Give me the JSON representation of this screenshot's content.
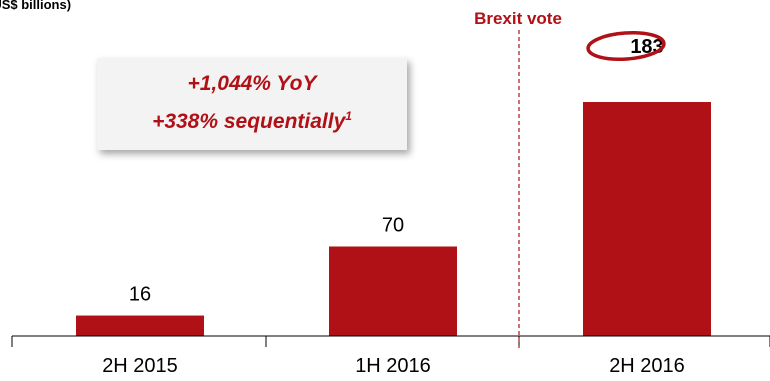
{
  "unit_label": "(US$ billions)",
  "callout": {
    "line1": "+1,044% YoY",
    "line2": "+338% sequentially",
    "line2_footnote": "1"
  },
  "event_marker": {
    "label": "Brexit vote",
    "position_between": [
      "1H 2016",
      "2H 2016"
    ]
  },
  "colors": {
    "bar": "#b01117",
    "accent_text": "#b01117",
    "axis": "#000000",
    "callout_bg": "#f3f3f3"
  },
  "chart_data": {
    "type": "bar",
    "title": "",
    "xlabel": "",
    "ylabel": "(US$ billions)",
    "categories": [
      "2H 2015",
      "1H 2016",
      "2H 2016"
    ],
    "values": [
      16,
      70,
      183
    ],
    "data_labels": [
      "16",
      "70",
      "183"
    ],
    "highlighted_category": "2H 2016",
    "ylim": [
      0,
      205
    ],
    "grid": false,
    "legend": "none"
  }
}
